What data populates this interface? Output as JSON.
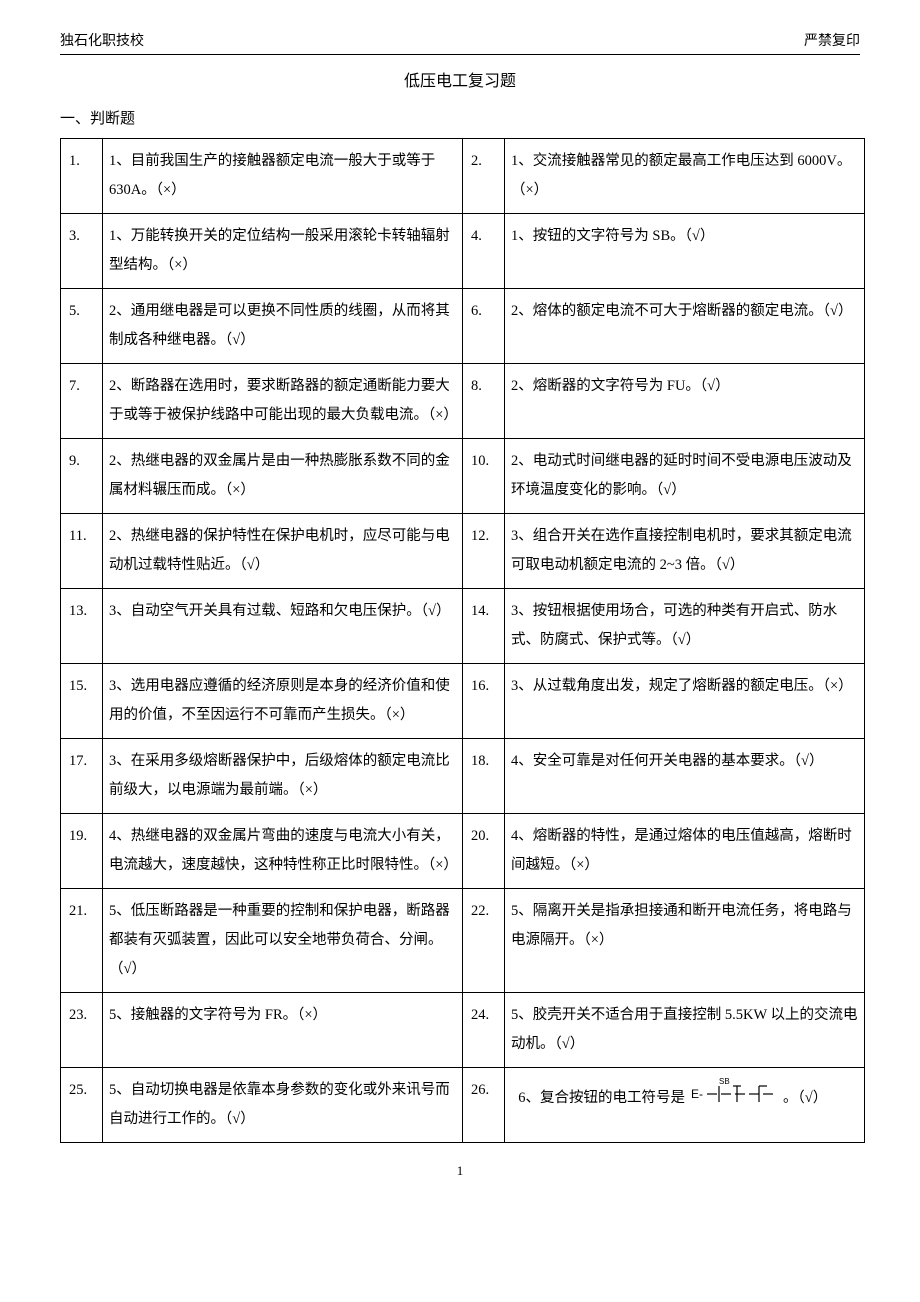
{
  "header": {
    "left": "独石化职技校",
    "right": "严禁复印"
  },
  "title": "低压电工复习题",
  "section": "一、判断题",
  "rows": [
    {
      "n1": "1.",
      "t1": "1、目前我国生产的接触器额定电流一般大于或等于 630A。（×）",
      "n2": "2.",
      "t2": "1、交流接触器常见的额定最高工作电压达到 6000V。（×）"
    },
    {
      "n1": "3.",
      "t1": "1、万能转换开关的定位结构一般采用滚轮卡转轴辐射型结构。（×）",
      "n2": "4.",
      "t2": "1、按钮的文字符号为 SB。（√）"
    },
    {
      "n1": "5.",
      "t1": "2、通用继电器是可以更换不同性质的线圈，从而将其制成各种继电器。（√）",
      "n2": "6.",
      "t2": "2、熔体的额定电流不可大于熔断器的额定电流。（√）"
    },
    {
      "n1": "7.",
      "t1": "2、断路器在选用时，要求断路器的额定通断能力要大于或等于被保护线路中可能出现的最大负载电流。（×）",
      "n2": "8.",
      "t2": "2、熔断器的文字符号为 FU。（√）"
    },
    {
      "n1": "9.",
      "t1": "2、热继电器的双金属片是由一种热膨胀系数不同的金属材料辗压而成。（×）",
      "n2": "10.",
      "t2": "2、电动式时间继电器的延时时间不受电源电压波动及环境温度变化的影响。（√）"
    },
    {
      "n1": "11.",
      "t1": "2、热继电器的保护特性在保护电机时，应尽可能与电动机过载特性贴近。（√）",
      "n2": "12.",
      "t2": "3、组合开关在选作直接控制电机时，要求其额定电流可取电动机额定电流的 2~3 倍。（√）"
    },
    {
      "n1": "13.",
      "t1": "3、自动空气开关具有过载、短路和欠电压保护。（√）",
      "n2": "14.",
      "t2": "3、按钮根据使用场合，可选的种类有开启式、防水式、防腐式、保护式等。（√）"
    },
    {
      "n1": "15.",
      "t1": "3、选用电器应遵循的经济原则是本身的经济价值和使用的价值，不至因运行不可靠而产生损失。（×）",
      "n2": "16.",
      "t2": "3、从过载角度出发，规定了熔断器的额定电压。（×）"
    },
    {
      "n1": "17.",
      "t1": "3、在采用多级熔断器保护中，后级熔体的额定电流比前级大，以电源端为最前端。（×）",
      "n2": "18.",
      "t2": "4、安全可靠是对任何开关电器的基本要求。（√）"
    },
    {
      "n1": "19.",
      "t1": "4、热继电器的双金属片弯曲的速度与电流大小有关，电流越大，速度越快，这种特性称正比时限特性。（×）",
      "n2": "20.",
      "t2": "4、熔断器的特性，是通过熔体的电压值越高，熔断时间越短。（×）"
    },
    {
      "n1": "21.",
      "t1": "5、低压断路器是一种重要的控制和保护电器，断路器都装有灭弧装置，因此可以安全地带负荷合、分闸。（√）",
      "n2": "22.",
      "t2": "5、隔离开关是指承担接通和断开电流任务，将电路与电源隔开。（×）"
    },
    {
      "n1": "23.",
      "t1": "5、接触器的文字符号为 FR。（×）",
      "n2": "24.",
      "t2": "5、胶壳开关不适合用于直接控制 5.5KW 以上的交流电动机。（√）"
    },
    {
      "n1": "25.",
      "t1": "5、自动切换电器是依靠本身参数的变化或外来讯号而自动进行工作的。（√）",
      "n2": "26.",
      "t2_prefix": "6、复合按钮的电工符号是",
      "t2_suffix": "。（√）",
      "has_symbol": true
    }
  ],
  "symbol_label": "SB",
  "page_number": "1",
  "colors": {
    "text": "#000000",
    "bg": "#ffffff",
    "border": "#000000"
  }
}
